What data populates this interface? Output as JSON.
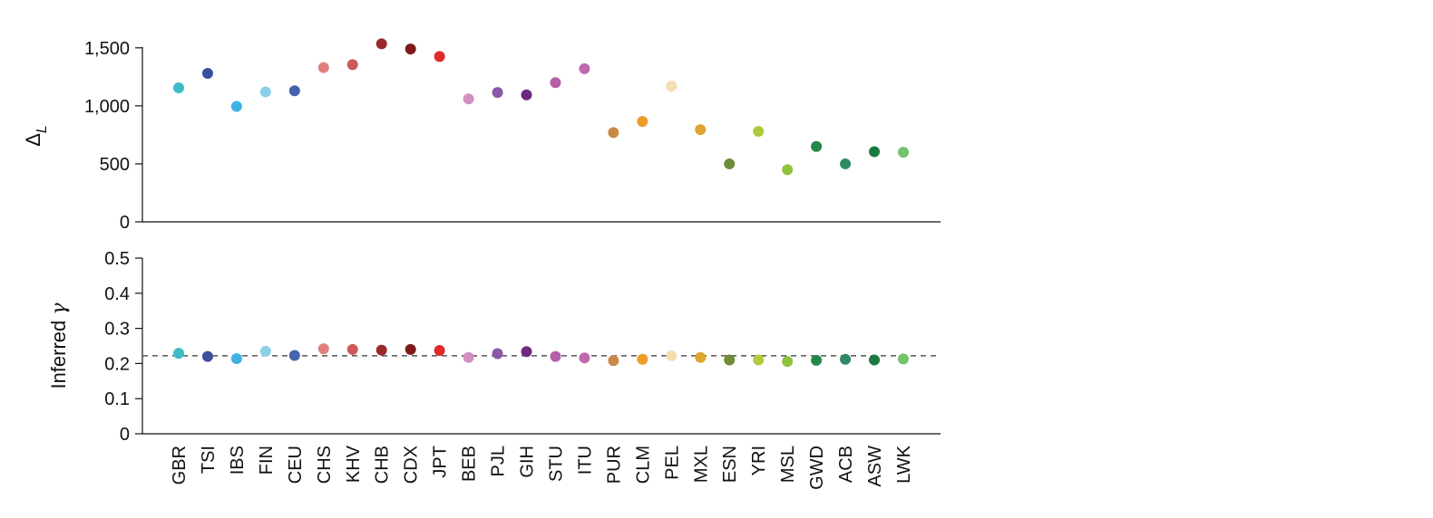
{
  "chart_data": [
    {
      "type": "scatter",
      "panel": "top",
      "ylabel_main": "Δ",
      "ylabel_sub": "L",
      "ylim": [
        0,
        1600
      ],
      "yticks": [
        0,
        500,
        1000,
        1500
      ],
      "ytick_labels": [
        "0",
        "500",
        "1,000",
        "1,500"
      ],
      "categories": [
        "GBR",
        "TSI",
        "IBS",
        "FIN",
        "CEU",
        "CHS",
        "KHV",
        "CHB",
        "CDX",
        "JPT",
        "BEB",
        "PJL",
        "GIH",
        "STU",
        "ITU",
        "PUR",
        "CLM",
        "PEL",
        "MXL",
        "ESN",
        "YRI",
        "MSL",
        "GWD",
        "ACB",
        "ASW",
        "LWK"
      ],
      "values": [
        1155,
        1280,
        995,
        1120,
        1130,
        1330,
        1355,
        1535,
        1490,
        1425,
        1060,
        1115,
        1095,
        1200,
        1320,
        770,
        865,
        1170,
        795,
        500,
        780,
        450,
        650,
        500,
        605,
        600
      ],
      "grid": false
    },
    {
      "type": "scatter",
      "panel": "bottom",
      "ylabel_italic_prefix": "Inferred ",
      "ylabel_symbol": "γ",
      "ylim": [
        0,
        0.5
      ],
      "yticks": [
        0,
        0.1,
        0.2,
        0.3,
        0.4,
        0.5
      ],
      "ytick_labels": [
        "0",
        "0.1",
        "0.2",
        "0.3",
        "0.4",
        "0.5"
      ],
      "categories": [
        "GBR",
        "TSI",
        "IBS",
        "FIN",
        "CEU",
        "CHS",
        "KHV",
        "CHB",
        "CDX",
        "JPT",
        "BEB",
        "PJL",
        "GIH",
        "STU",
        "ITU",
        "PUR",
        "CLM",
        "PEL",
        "MXL",
        "ESN",
        "YRI",
        "MSL",
        "GWD",
        "ACB",
        "ASW",
        "LWK"
      ],
      "values": [
        0.229,
        0.22,
        0.214,
        0.235,
        0.223,
        0.242,
        0.24,
        0.238,
        0.24,
        0.237,
        0.217,
        0.228,
        0.234,
        0.22,
        0.216,
        0.208,
        0.212,
        0.222,
        0.217,
        0.21,
        0.21,
        0.206,
        0.209,
        0.212,
        0.21,
        0.213
      ],
      "reference_line": 0.222,
      "grid": false
    }
  ],
  "colors": [
    "#3fbcc8",
    "#3c4f9d",
    "#3fb2e3",
    "#8ccfe9",
    "#4364ad",
    "#e07f7f",
    "#cc5a5a",
    "#9c2a2a",
    "#7d1a1a",
    "#e12a2a",
    "#d38fbe",
    "#8c57a8",
    "#6e2a80",
    "#b45fa8",
    "#c069ae",
    "#c98a48",
    "#f09a2a",
    "#f2dfb0",
    "#e0a52e",
    "#6f8c36",
    "#aecb3e",
    "#8dc43f",
    "#25874a",
    "#2e8b63",
    "#197c3e",
    "#72c36a"
  ]
}
